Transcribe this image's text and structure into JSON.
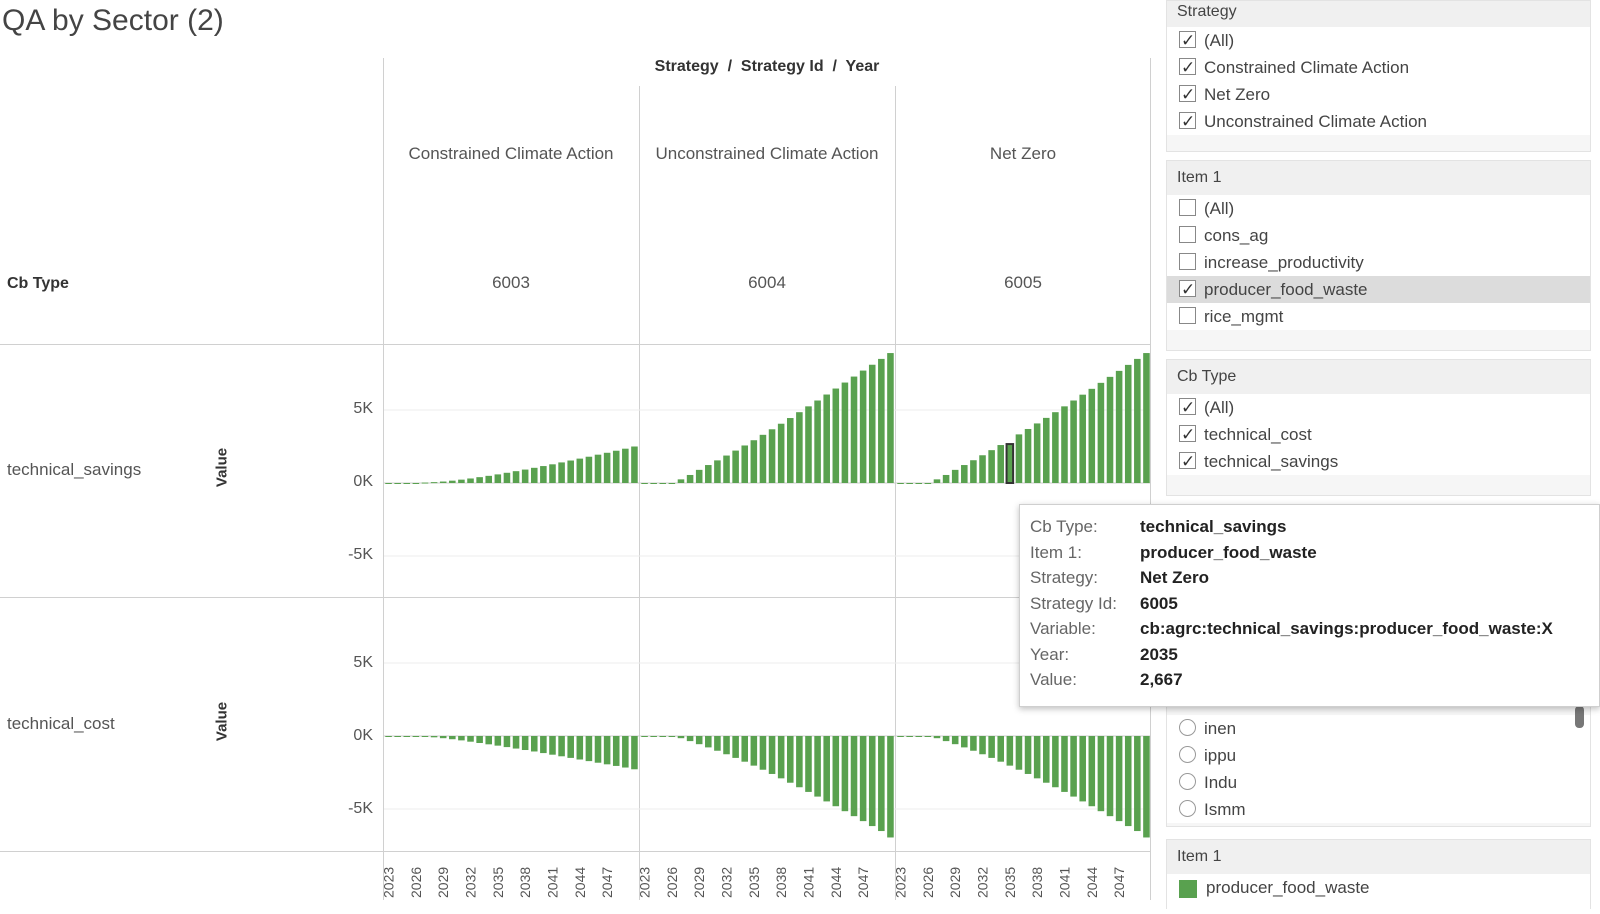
{
  "title": "QA by Sector (2)",
  "column_header": "Strategy  /  Strategy Id  /  Year",
  "row_header": "Cb Type",
  "value_axis_label": "Value",
  "chart_data": {
    "type": "bar",
    "colors": {
      "bar": "#59a14f",
      "highlight_outline": "#333333",
      "grid": "#eeeeee"
    },
    "strategies": [
      {
        "name": "Constrained Climate Action",
        "id": "6003"
      },
      {
        "name": "Unconstrained Climate Action",
        "id": "6004"
      },
      {
        "name": "Net Zero",
        "id": "6005"
      }
    ],
    "years": [
      2023,
      2024,
      2025,
      2026,
      2027,
      2028,
      2029,
      2030,
      2031,
      2032,
      2033,
      2034,
      2035,
      2036,
      2037,
      2038,
      2039,
      2040,
      2041,
      2042,
      2043,
      2044,
      2045,
      2046,
      2047,
      2048,
      2049,
      2050
    ],
    "x_tick_labels": [
      "2023",
      "2026",
      "2029",
      "2032",
      "2035",
      "2038",
      "2041",
      "2044",
      "2047"
    ],
    "y_ticks": [
      "5K",
      "0K",
      "-5K"
    ],
    "ylim": [
      -7000,
      7000
    ],
    "rows": [
      {
        "cb_type": "technical_savings",
        "series": [
          {
            "strategy": "Constrained Climate Action",
            "values": [
              0,
              0,
              0,
              0,
              30,
              60,
              100,
              160,
              230,
              310,
              400,
              490,
              590,
              700,
              810,
              920,
              1040,
              1160,
              1280,
              1410,
              1540,
              1670,
              1800,
              1940,
              2070,
              2210,
              2350,
              2500
            ]
          },
          {
            "strategy": "Unconstrained Climate Action",
            "values": [
              0,
              0,
              0,
              0,
              250,
              550,
              900,
              1230,
              1550,
              1880,
              2220,
              2570,
              2930,
              3300,
              3680,
              4060,
              4450,
              4850,
              5250,
              5650,
              6060,
              6470,
              6880,
              7290,
              7700,
              8100,
              8500,
              8900
            ]
          },
          {
            "strategy": "Net Zero",
            "values": [
              0,
              0,
              0,
              0,
              250,
              550,
              900,
              1230,
              1560,
              1900,
              2250,
              2600,
              2667,
              3330,
              3700,
              4080,
              4460,
              4850,
              5250,
              5650,
              6050,
              6450,
              6860,
              7270,
              7680,
              8090,
              8500,
              8900
            ]
          }
        ]
      },
      {
        "cb_type": "technical_cost",
        "series": [
          {
            "strategy": "Constrained Climate Action",
            "values": [
              0,
              0,
              0,
              0,
              -40,
              -90,
              -150,
              -220,
              -300,
              -390,
              -480,
              -570,
              -660,
              -760,
              -860,
              -960,
              -1060,
              -1170,
              -1280,
              -1390,
              -1500,
              -1610,
              -1720,
              -1830,
              -1940,
              -2050,
              -2160,
              -2280
            ]
          },
          {
            "strategy": "Unconstrained Climate Action",
            "values": [
              0,
              0,
              0,
              0,
              -150,
              -350,
              -560,
              -780,
              -1010,
              -1250,
              -1500,
              -1760,
              -2030,
              -2310,
              -2600,
              -2900,
              -3200,
              -3510,
              -3830,
              -4150,
              -4480,
              -4810,
              -5150,
              -5490,
              -5830,
              -6170,
              -6510,
              -6950
            ]
          },
          {
            "strategy": "Net Zero",
            "values": [
              0,
              0,
              0,
              0,
              -150,
              -350,
              -560,
              -780,
              -1010,
              -1250,
              -1500,
              -1760,
              -2030,
              -2310,
              -2600,
              -2900,
              -3200,
              -3510,
              -3830,
              -4150,
              -4480,
              -4810,
              -5150,
              -5490,
              -5830,
              -6170,
              -6510,
              -6950
            ]
          }
        ]
      }
    ],
    "highlight": {
      "row": "technical_savings",
      "strategy": "Net Zero",
      "year": 2035
    }
  },
  "filters": {
    "strategy": {
      "title": "Strategy",
      "options": [
        {
          "label": "(All)",
          "checked": true
        },
        {
          "label": "Constrained Climate Action",
          "checked": true
        },
        {
          "label": "Net Zero",
          "checked": true
        },
        {
          "label": "Unconstrained Climate Action",
          "checked": true
        }
      ]
    },
    "item1": {
      "title": "Item 1",
      "options": [
        {
          "label": "(All)",
          "checked": false
        },
        {
          "label": "cons_ag",
          "checked": false
        },
        {
          "label": "increase_productivity",
          "checked": false
        },
        {
          "label": "producer_food_waste",
          "checked": true
        },
        {
          "label": "rice_mgmt",
          "checked": false
        }
      ]
    },
    "cbtype": {
      "title": "Cb Type",
      "options": [
        {
          "label": "(All)",
          "checked": true
        },
        {
          "label": "technical_cost",
          "checked": true
        },
        {
          "label": "technical_savings",
          "checked": true
        }
      ]
    },
    "sector": {
      "options": [
        {
          "label": "inen"
        },
        {
          "label": "ippu"
        },
        {
          "label": "Indu"
        },
        {
          "label": "Ismm"
        }
      ]
    }
  },
  "legend": {
    "title": "Item 1",
    "item": "producer_food_waste"
  },
  "tooltip": {
    "rows": [
      {
        "key": "Cb Type:",
        "value": "technical_savings"
      },
      {
        "key": "Item 1:",
        "value": "producer_food_waste"
      },
      {
        "key": "Strategy:",
        "value": "Net Zero"
      },
      {
        "key": "Strategy Id:",
        "value": "6005"
      },
      {
        "key": "Variable:",
        "value": "cb:agrc:technical_savings:producer_food_waste:X"
      },
      {
        "key": "Year:",
        "value": "2035"
      },
      {
        "key": "Value:",
        "value": "2,667"
      }
    ]
  }
}
